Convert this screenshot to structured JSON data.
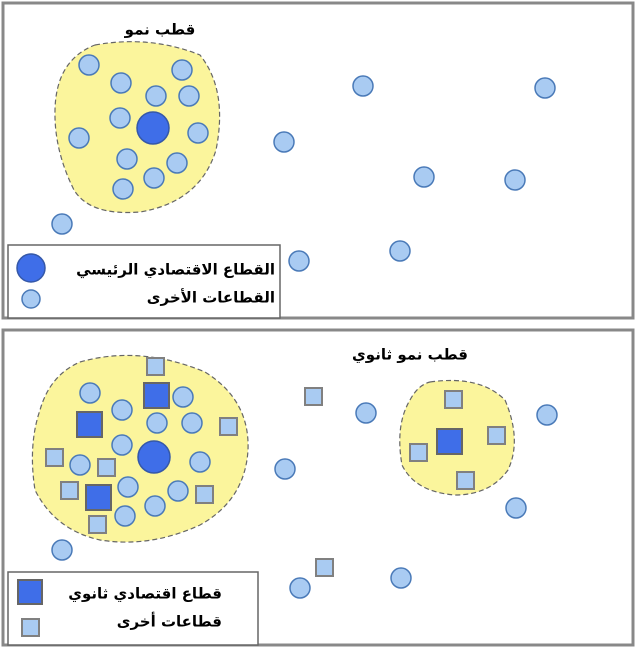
{
  "top_panel": {
    "pole_label": "قطب نمو",
    "legend": {
      "main_sector": "القطاع الاقتصادي الرئيسي",
      "other_sectors": "القطاعات الأخرى"
    }
  },
  "bottom_panel": {
    "pole_label": "قطب نمو ثانوي",
    "legend": {
      "secondary_sector": "قطاع اقتصادي ثانوي",
      "other_sectors": "قطاعات أخرى"
    }
  }
}
